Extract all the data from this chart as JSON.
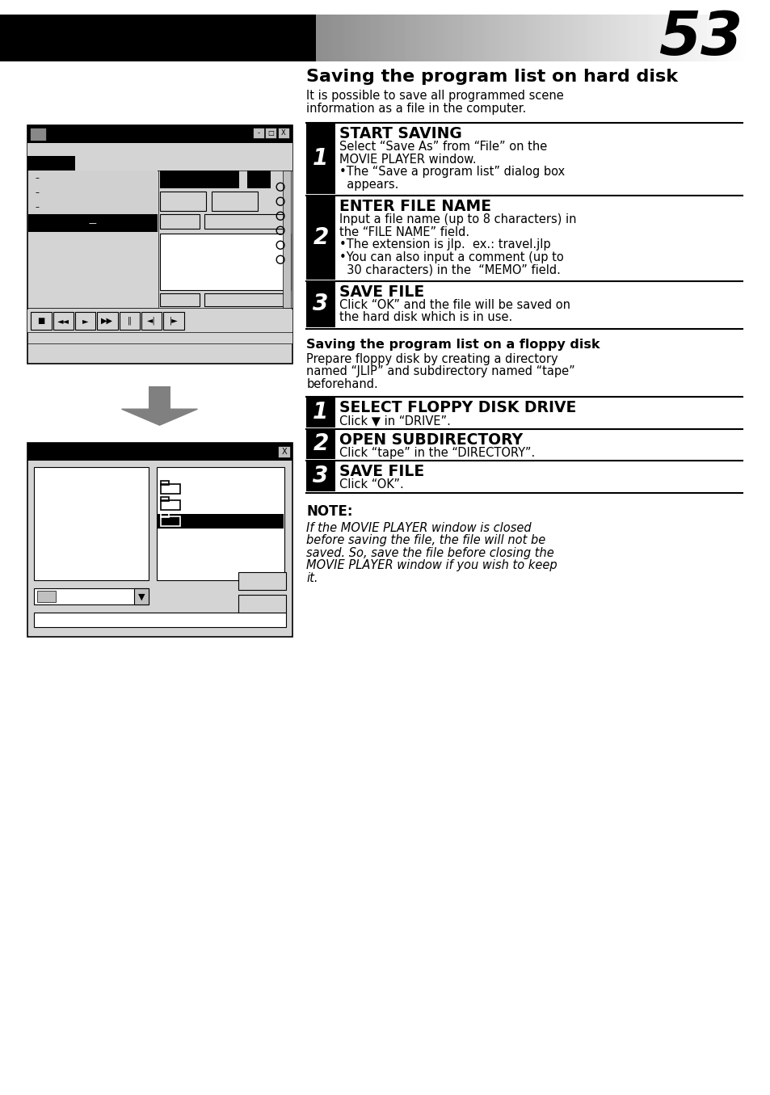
{
  "page_number": "53",
  "bg_color": "#ffffff",
  "title": "Saving the program list on hard disk",
  "intro_line1": "It is possible to save all programmed scene",
  "intro_line2": "information as a file in the computer.",
  "s1_num": "1",
  "s1_title": "START SAVING",
  "s1_body1": "Select “Save As” from “File” on the",
  "s1_body2": "MOVIE PLAYER window.",
  "s1_bullet": "•The “Save a program list” dialog box",
  "s1_bullet2": "  appears.",
  "s2_num": "2",
  "s2_title": "ENTER FILE NAME",
  "s2_body1": "Input a file name (up to 8 characters) in",
  "s2_body2": "the “FILE NAME” field.",
  "s2_b1": "•The extension is jlp.  ex.: travel.jlp",
  "s2_b2": "•You can also input a comment (up to",
  "s2_b3": "  30 characters) in the  “MEMO” field.",
  "s3_num": "3",
  "s3_title": "SAVE FILE",
  "s3_body1": "Click “OK” and the file will be saved on",
  "s3_body2": "the hard disk which is in use.",
  "floppy_h": "Saving the program list on a floppy disk",
  "floppy_p1": "Prepare floppy disk by creating a directory",
  "floppy_p2": "named “JLIP” and subdirectory named “tape”",
  "floppy_p3": "beforehand.",
  "f1_num": "1",
  "f1_title": "SELECT FLOPPY DISK DRIVE",
  "f1_body": "Click ▼ in “DRIVE”.",
  "f2_num": "2",
  "f2_title": "OPEN SUBDIRECTORY",
  "f2_body": "Click “tape” in the “DIRECTORY”.",
  "f3_num": "3",
  "f3_title": "SAVE FILE",
  "f3_body": "Click “OK”.",
  "note_h": "NOTE:",
  "note_b1": "If the MOVIE PLAYER window is closed",
  "note_b2": "before saving the file, the file will not be",
  "note_b3": "saved. So, save the file before closing the",
  "note_b4": "MOVIE PLAYER window if you wish to keep",
  "note_b5": "it.",
  "gray_arrow": "#808080",
  "light_gray": "#d4d4d4",
  "mid_gray": "#c0c0c0",
  "dark_gray": "#888888",
  "white": "#ffffff",
  "black": "#000000"
}
